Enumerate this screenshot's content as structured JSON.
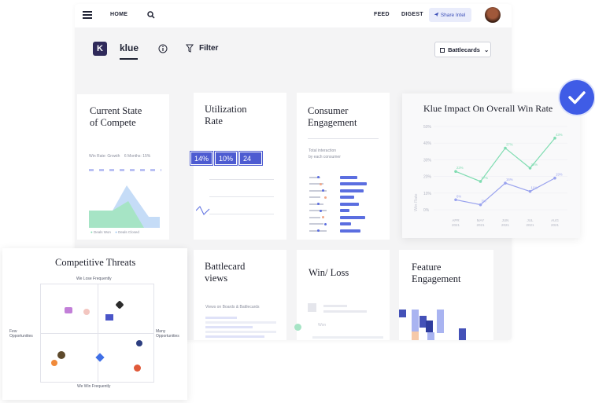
{
  "nav": {
    "home": "HOME",
    "feed": "FEED",
    "digest": "DIGEST",
    "share_intel": "Share Intel"
  },
  "header": {
    "brand": "klue",
    "logo_letter": "K",
    "filter": "Filter",
    "view_select": "Battlecards"
  },
  "cards": {
    "compete": {
      "title_line1": "Current State",
      "title_line2": "of Compete",
      "win_rate": "Win Rate:",
      "growth": "Growth",
      "months": "6 Months:",
      "percent": "15%",
      "legend_won": "Deals Won",
      "legend_closed": "Deals Closed"
    },
    "utilization": {
      "title_line1": "Utilization",
      "title_line2": "Rate",
      "badges": [
        "14%",
        "10%",
        "24"
      ]
    },
    "consumer": {
      "title_line1": "Consumer",
      "title_line2": "Engagement",
      "subtitle_line1": "Total interaction",
      "subtitle_line2": "by each consumer"
    },
    "battlecard_views": {
      "title_line1": "Battlecard",
      "title_line2": "views",
      "subtitle": "Views on Boards & Battlecards"
    },
    "win_loss": {
      "title": "Win/ Loss",
      "won_label": "Won"
    },
    "feature": {
      "title_line1": "Feature",
      "title_line2": "Engagement"
    },
    "threats": {
      "title": "Competitive Threats",
      "top": "We Lose Frequently",
      "bottom": "We Win Frequently",
      "left_line1": "Few",
      "left_line2": "Opportunities",
      "right_line1": "Many",
      "right_line2": "Opportunities"
    },
    "impact": {
      "title": "Klue Impact On Overall Win Rate",
      "ylabel": "Win Rate"
    }
  },
  "chart_data": {
    "type": "line",
    "title": "Klue Impact On Overall Win Rate",
    "ylabel": "Win Rate",
    "categories": [
      "APR 2021",
      "MAY 2021",
      "JUN 2021",
      "JUL 2021",
      "AUG 2021"
    ],
    "yticks": [
      "0%",
      "10%",
      "20%",
      "30%",
      "40%",
      "50%"
    ],
    "ylim": [
      0,
      50
    ],
    "series": [
      {
        "values": [
          23,
          17,
          37,
          25,
          43
        ],
        "labels": [
          "23%",
          "17%",
          "37%",
          "25%",
          "43%"
        ],
        "color": "#7fdcb1"
      },
      {
        "values": [
          6,
          3,
          16,
          11,
          19
        ],
        "labels": [
          "6%",
          "3%",
          "16%",
          "11%",
          "19%"
        ],
        "color": "#9aa3ee"
      }
    ]
  },
  "colors": {
    "accent": "#4d5bd1",
    "check_badge": "#3f5ce6",
    "green": "#7fdcb1",
    "lavender": "#9aa3ee"
  }
}
